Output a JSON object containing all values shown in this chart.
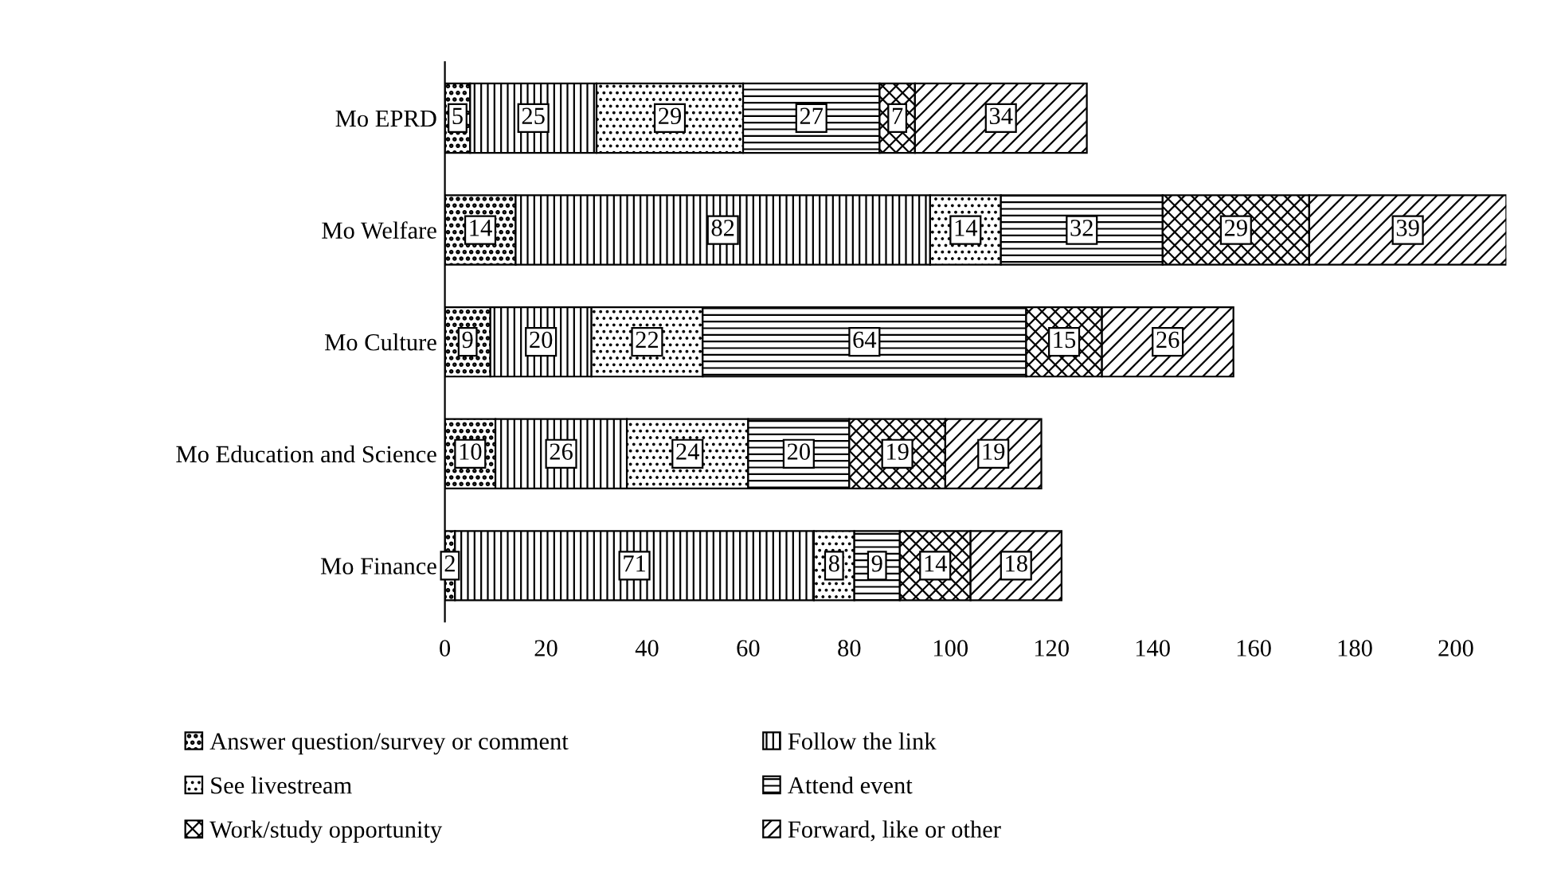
{
  "chart_data": {
    "type": "bar",
    "orientation": "horizontal",
    "stacked": true,
    "data_labels": true,
    "grid": false,
    "legend": "bottom",
    "categories": [
      "Mo EPRD",
      "Mo Welfare",
      "Mo Culture",
      "Mo Education and Science",
      "Mo Finance"
    ],
    "xlim": [
      0,
      210
    ],
    "xticks": [
      0,
      20,
      40,
      60,
      80,
      100,
      120,
      140,
      160,
      180,
      200
    ],
    "series": [
      {
        "name": "Answer question/survey or comment",
        "color": "#000000",
        "values": [
          5,
          14,
          9,
          10,
          2
        ]
      },
      {
        "name": "Follow the link",
        "color": "#000000",
        "values": [
          25,
          82,
          20,
          26,
          71
        ]
      },
      {
        "name": "See livestream",
        "color": "#000000",
        "values": [
          29,
          14,
          22,
          24,
          8
        ]
      },
      {
        "name": "Attend event",
        "color": "#000000",
        "values": [
          27,
          32,
          64,
          20,
          9
        ]
      },
      {
        "name": "Work/study opportunity",
        "color": "#000000",
        "values": [
          7,
          29,
          15,
          19,
          14
        ]
      },
      {
        "name": "Forward, like or other",
        "color": "#000000",
        "values": [
          34,
          39,
          26,
          19,
          18
        ]
      }
    ]
  }
}
